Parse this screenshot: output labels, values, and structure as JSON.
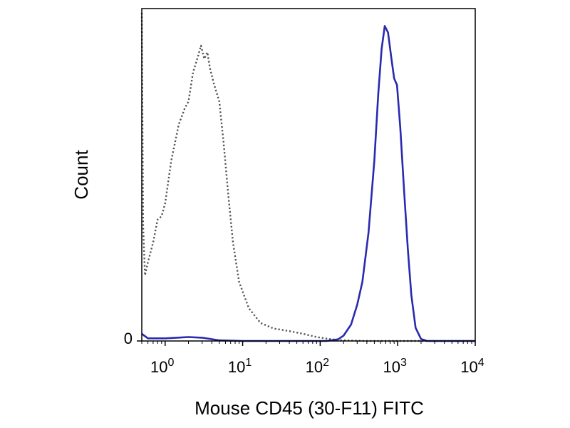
{
  "chart_data": {
    "type": "line",
    "xlabel": "Mouse CD45 (30-F11) FITC",
    "ylabel": "Count",
    "xscale": "log",
    "xlim": [
      0.5,
      10000
    ],
    "ylim": [
      0,
      100
    ],
    "x_ticks": [
      {
        "value": 1,
        "base": "10",
        "exp": "0"
      },
      {
        "value": 10,
        "base": "10",
        "exp": "1"
      },
      {
        "value": 100,
        "base": "10",
        "exp": "2"
      },
      {
        "value": 1000,
        "base": "10",
        "exp": "3"
      },
      {
        "value": 10000,
        "base": "10",
        "exp": "4"
      }
    ],
    "y_ticks": [
      {
        "value": 0,
        "label": "0"
      }
    ],
    "grid": false,
    "legend": "none",
    "series": [
      {
        "style": "dotted",
        "color": "#555555",
        "points": [
          [
            0.5,
            100
          ],
          [
            0.52,
            35
          ],
          [
            0.55,
            20
          ],
          [
            0.6,
            24
          ],
          [
            0.7,
            30
          ],
          [
            0.8,
            37
          ],
          [
            0.9,
            38
          ],
          [
            1.0,
            42
          ],
          [
            1.2,
            55
          ],
          [
            1.5,
            66
          ],
          [
            1.8,
            71
          ],
          [
            2.0,
            73
          ],
          [
            2.3,
            82
          ],
          [
            2.6,
            86
          ],
          [
            2.9,
            90
          ],
          [
            3.2,
            86
          ],
          [
            3.5,
            88
          ],
          [
            3.8,
            83
          ],
          [
            4.3,
            78
          ],
          [
            5.0,
            73
          ],
          [
            5.7,
            60
          ],
          [
            6.5,
            45
          ],
          [
            7.5,
            30
          ],
          [
            9.0,
            18
          ],
          [
            12,
            10
          ],
          [
            17,
            5.5
          ],
          [
            25,
            3.8
          ],
          [
            40,
            3
          ],
          [
            60,
            2.2
          ],
          [
            90,
            1.2
          ],
          [
            130,
            0.6
          ],
          [
            200,
            0.2
          ],
          [
            400,
            0
          ],
          [
            10000,
            0
          ]
        ]
      },
      {
        "style": "solid",
        "color": "#2a2ab0",
        "points": [
          [
            0.5,
            2.2
          ],
          [
            0.6,
            0.8
          ],
          [
            1.0,
            0.8
          ],
          [
            2.0,
            1.2
          ],
          [
            3.0,
            1.0
          ],
          [
            5.0,
            0.2
          ],
          [
            10,
            0
          ],
          [
            120,
            0
          ],
          [
            170,
            0.5
          ],
          [
            200,
            1.6
          ],
          [
            250,
            5
          ],
          [
            300,
            11
          ],
          [
            350,
            18
          ],
          [
            420,
            33
          ],
          [
            500,
            55
          ],
          [
            560,
            75
          ],
          [
            620,
            89
          ],
          [
            680,
            96
          ],
          [
            750,
            94
          ],
          [
            830,
            86
          ],
          [
            900,
            80
          ],
          [
            980,
            78
          ],
          [
            1080,
            65
          ],
          [
            1200,
            47
          ],
          [
            1350,
            28
          ],
          [
            1500,
            14
          ],
          [
            1700,
            4
          ],
          [
            2000,
            0.6
          ],
          [
            2400,
            0
          ],
          [
            10000,
            0
          ]
        ]
      }
    ]
  }
}
